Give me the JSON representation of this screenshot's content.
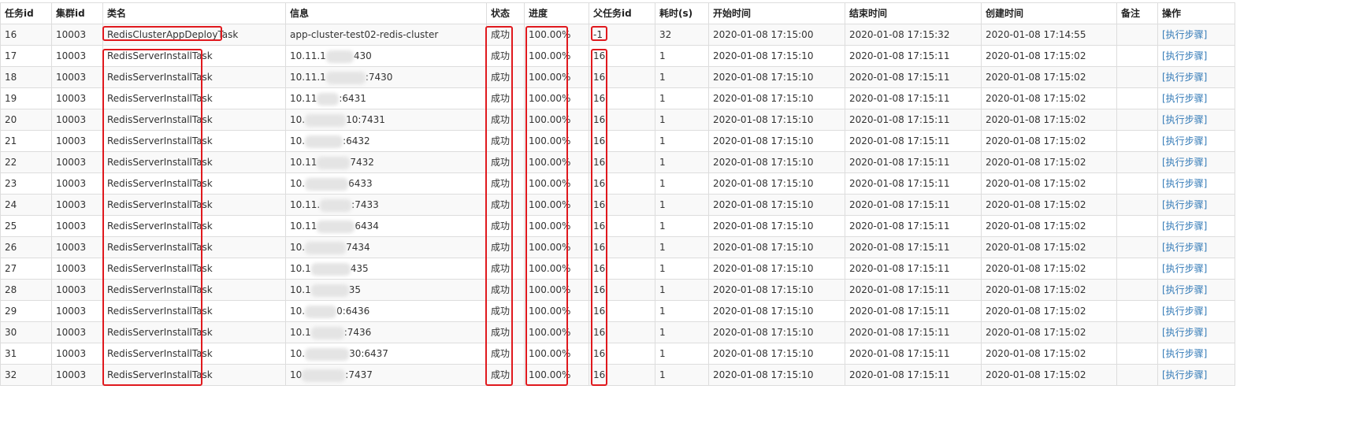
{
  "table": {
    "headers": {
      "task_id": "任务id",
      "cluster_id": "集群id",
      "class_name": "类名",
      "info": "信息",
      "status": "状态",
      "progress": "进度",
      "parent_id": "父任务id",
      "duration": "耗时(s)",
      "start_time": "开始时间",
      "end_time": "结束时间",
      "create_time": "创建时间",
      "remark": "备注",
      "action": "操作"
    },
    "rows": [
      {
        "task_id": "16",
        "cluster_id": "10003",
        "class_name": "RedisClusterAppDeployTask",
        "info": {
          "pre": "app-cluster-test02-redis-cluster",
          "post": ""
        },
        "status": "成功",
        "progress": "100.00%",
        "parent_id": "-1",
        "duration": "32",
        "start_time": "2020-01-08 17:15:00",
        "end_time": "2020-01-08 17:15:32",
        "create_time": "2020-01-08 17:14:55",
        "remark": "",
        "action": "[执行步骤]"
      },
      {
        "task_id": "17",
        "cluster_id": "10003",
        "class_name": "RedisServerInstallTask",
        "info": {
          "pre": "10.11.1",
          "post": "430"
        },
        "status": "成功",
        "progress": "100.00%",
        "parent_id": "16",
        "duration": "1",
        "start_time": "2020-01-08 17:15:10",
        "end_time": "2020-01-08 17:15:11",
        "create_time": "2020-01-08 17:15:02",
        "remark": "",
        "action": "[执行步骤]"
      },
      {
        "task_id": "18",
        "cluster_id": "10003",
        "class_name": "RedisServerInstallTask",
        "info": {
          "pre": "10.11.1",
          "post": ":7430"
        },
        "status": "成功",
        "progress": "100.00%",
        "parent_id": "16",
        "duration": "1",
        "start_time": "2020-01-08 17:15:10",
        "end_time": "2020-01-08 17:15:11",
        "create_time": "2020-01-08 17:15:02",
        "remark": "",
        "action": "[执行步骤]"
      },
      {
        "task_id": "19",
        "cluster_id": "10003",
        "class_name": "RedisServerInstallTask",
        "info": {
          "pre": "10.11",
          "post": ":6431"
        },
        "status": "成功",
        "progress": "100.00%",
        "parent_id": "16",
        "duration": "1",
        "start_time": "2020-01-08 17:15:10",
        "end_time": "2020-01-08 17:15:11",
        "create_time": "2020-01-08 17:15:02",
        "remark": "",
        "action": "[执行步骤]"
      },
      {
        "task_id": "20",
        "cluster_id": "10003",
        "class_name": "RedisServerInstallTask",
        "info": {
          "pre": "10.",
          "post": "10:7431"
        },
        "status": "成功",
        "progress": "100.00%",
        "parent_id": "16",
        "duration": "1",
        "start_time": "2020-01-08 17:15:10",
        "end_time": "2020-01-08 17:15:11",
        "create_time": "2020-01-08 17:15:02",
        "remark": "",
        "action": "[执行步骤]"
      },
      {
        "task_id": "21",
        "cluster_id": "10003",
        "class_name": "RedisServerInstallTask",
        "info": {
          "pre": "10.",
          "post": ":6432"
        },
        "status": "成功",
        "progress": "100.00%",
        "parent_id": "16",
        "duration": "1",
        "start_time": "2020-01-08 17:15:10",
        "end_time": "2020-01-08 17:15:11",
        "create_time": "2020-01-08 17:15:02",
        "remark": "",
        "action": "[执行步骤]"
      },
      {
        "task_id": "22",
        "cluster_id": "10003",
        "class_name": "RedisServerInstallTask",
        "info": {
          "pre": "10.11",
          "post": "7432"
        },
        "status": "成功",
        "progress": "100.00%",
        "parent_id": "16",
        "duration": "1",
        "start_time": "2020-01-08 17:15:10",
        "end_time": "2020-01-08 17:15:11",
        "create_time": "2020-01-08 17:15:02",
        "remark": "",
        "action": "[执行步骤]"
      },
      {
        "task_id": "23",
        "cluster_id": "10003",
        "class_name": "RedisServerInstallTask",
        "info": {
          "pre": "10.",
          "post": "6433"
        },
        "status": "成功",
        "progress": "100.00%",
        "parent_id": "16",
        "duration": "1",
        "start_time": "2020-01-08 17:15:10",
        "end_time": "2020-01-08 17:15:11",
        "create_time": "2020-01-08 17:15:02",
        "remark": "",
        "action": "[执行步骤]"
      },
      {
        "task_id": "24",
        "cluster_id": "10003",
        "class_name": "RedisServerInstallTask",
        "info": {
          "pre": "10.11.",
          "post": ":7433"
        },
        "status": "成功",
        "progress": "100.00%",
        "parent_id": "16",
        "duration": "1",
        "start_time": "2020-01-08 17:15:10",
        "end_time": "2020-01-08 17:15:11",
        "create_time": "2020-01-08 17:15:02",
        "remark": "",
        "action": "[执行步骤]"
      },
      {
        "task_id": "25",
        "cluster_id": "10003",
        "class_name": "RedisServerInstallTask",
        "info": {
          "pre": "10.11",
          "post": "6434"
        },
        "status": "成功",
        "progress": "100.00%",
        "parent_id": "16",
        "duration": "1",
        "start_time": "2020-01-08 17:15:10",
        "end_time": "2020-01-08 17:15:11",
        "create_time": "2020-01-08 17:15:02",
        "remark": "",
        "action": "[执行步骤]"
      },
      {
        "task_id": "26",
        "cluster_id": "10003",
        "class_name": "RedisServerInstallTask",
        "info": {
          "pre": "10.",
          "post": "7434"
        },
        "status": "成功",
        "progress": "100.00%",
        "parent_id": "16",
        "duration": "1",
        "start_time": "2020-01-08 17:15:10",
        "end_time": "2020-01-08 17:15:11",
        "create_time": "2020-01-08 17:15:02",
        "remark": "",
        "action": "[执行步骤]"
      },
      {
        "task_id": "27",
        "cluster_id": "10003",
        "class_name": "RedisServerInstallTask",
        "info": {
          "pre": "10.1",
          "post": "435"
        },
        "status": "成功",
        "progress": "100.00%",
        "parent_id": "16",
        "duration": "1",
        "start_time": "2020-01-08 17:15:10",
        "end_time": "2020-01-08 17:15:11",
        "create_time": "2020-01-08 17:15:02",
        "remark": "",
        "action": "[执行步骤]"
      },
      {
        "task_id": "28",
        "cluster_id": "10003",
        "class_name": "RedisServerInstallTask",
        "info": {
          "pre": "10.1",
          "post": "35"
        },
        "status": "成功",
        "progress": "100.00%",
        "parent_id": "16",
        "duration": "1",
        "start_time": "2020-01-08 17:15:10",
        "end_time": "2020-01-08 17:15:11",
        "create_time": "2020-01-08 17:15:02",
        "remark": "",
        "action": "[执行步骤]"
      },
      {
        "task_id": "29",
        "cluster_id": "10003",
        "class_name": "RedisServerInstallTask",
        "info": {
          "pre": "10.",
          "post": "0:6436"
        },
        "status": "成功",
        "progress": "100.00%",
        "parent_id": "16",
        "duration": "1",
        "start_time": "2020-01-08 17:15:10",
        "end_time": "2020-01-08 17:15:11",
        "create_time": "2020-01-08 17:15:02",
        "remark": "",
        "action": "[执行步骤]"
      },
      {
        "task_id": "30",
        "cluster_id": "10003",
        "class_name": "RedisServerInstallTask",
        "info": {
          "pre": "10.1",
          "post": ":7436"
        },
        "status": "成功",
        "progress": "100.00%",
        "parent_id": "16",
        "duration": "1",
        "start_time": "2020-01-08 17:15:10",
        "end_time": "2020-01-08 17:15:11",
        "create_time": "2020-01-08 17:15:02",
        "remark": "",
        "action": "[执行步骤]"
      },
      {
        "task_id": "31",
        "cluster_id": "10003",
        "class_name": "RedisServerInstallTask",
        "info": {
          "pre": "10.",
          "post": "30:6437"
        },
        "status": "成功",
        "progress": "100.00%",
        "parent_id": "16",
        "duration": "1",
        "start_time": "2020-01-08 17:15:10",
        "end_time": "2020-01-08 17:15:11",
        "create_time": "2020-01-08 17:15:02",
        "remark": "",
        "action": "[执行步骤]"
      },
      {
        "task_id": "32",
        "cluster_id": "10003",
        "class_name": "RedisServerInstallTask",
        "info": {
          "pre": "10",
          "post": ":7437"
        },
        "status": "成功",
        "progress": "100.00%",
        "parent_id": "16",
        "duration": "1",
        "start_time": "2020-01-08 17:15:10",
        "end_time": "2020-01-08 17:15:11",
        "create_time": "2020-01-08 17:15:02",
        "remark": "",
        "action": "[执行步骤]"
      }
    ]
  },
  "colors": {
    "highlight_border": "#e0191e",
    "link": "#337ab7",
    "grid_border": "#dddddd",
    "zebra_row": "#f9f9f9"
  }
}
